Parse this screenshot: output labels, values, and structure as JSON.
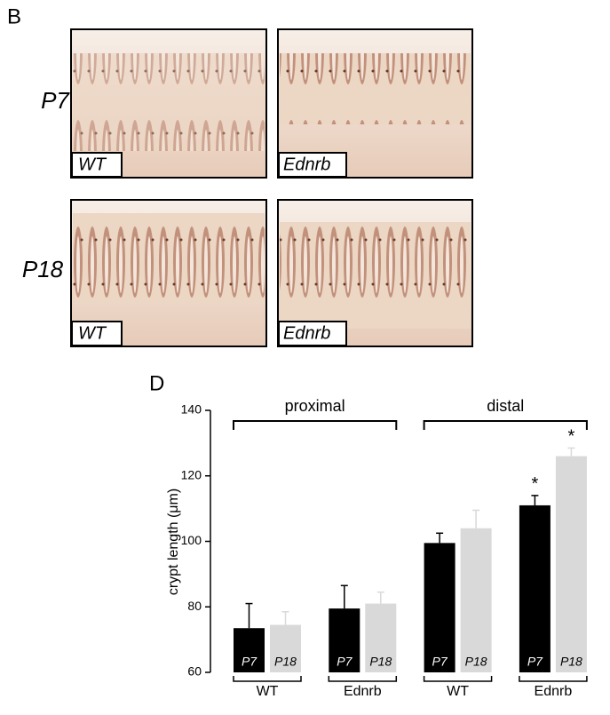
{
  "figure": {
    "panel_b": {
      "label": "B",
      "rows": [
        {
          "label": "P7",
          "images": [
            "WT",
            "Ednrb"
          ]
        },
        {
          "label": "P18",
          "images": [
            "WT",
            "Ednrb"
          ]
        }
      ]
    }
  },
  "chart_data": {
    "type": "bar",
    "panel_label": "D",
    "y_label": "crypt length (μm)",
    "categories": [
      "WT",
      "Ednrb",
      "WT",
      "Ednrb"
    ],
    "groups": [
      "proximal",
      "distal"
    ],
    "series": [
      {
        "name": "P7",
        "color": "#000000",
        "values": [
          73.5,
          79.5,
          99.5,
          111
        ],
        "errors": [
          7.5,
          7,
          3,
          3
        ],
        "markers": [
          null,
          null,
          null,
          "*"
        ]
      },
      {
        "name": "P18",
        "color": "#d9d9d9",
        "values": [
          74.5,
          81,
          104,
          126
        ],
        "errors": [
          4,
          3.5,
          5.5,
          2.5
        ],
        "markers": [
          null,
          null,
          null,
          "*"
        ]
      }
    ],
    "ylim": [
      60,
      140
    ],
    "yticks": [
      60,
      80,
      100,
      120,
      140
    ]
  }
}
